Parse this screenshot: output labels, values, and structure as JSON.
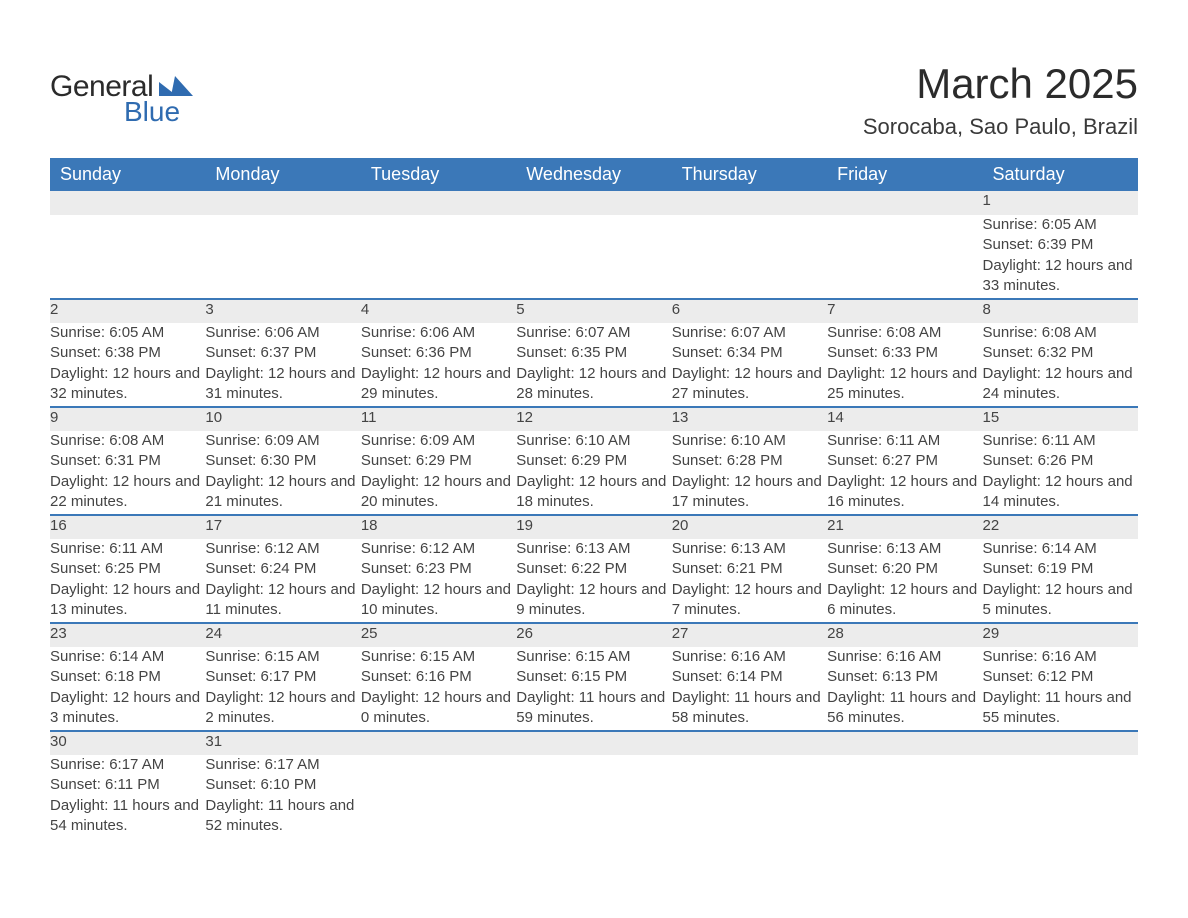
{
  "logo": {
    "text1": "General",
    "text2": "Blue",
    "mark_color": "#2f6bb0"
  },
  "title": "March 2025",
  "location": "Sorocaba, Sao Paulo, Brazil",
  "header_bg": "#3b78b8",
  "header_fg": "#ffffff",
  "daynum_bg": "#ececec",
  "border_color": "#3b78b8",
  "weekdays": [
    "Sunday",
    "Monday",
    "Tuesday",
    "Wednesday",
    "Thursday",
    "Friday",
    "Saturday"
  ],
  "weeks": [
    [
      null,
      null,
      null,
      null,
      null,
      null,
      {
        "n": "1",
        "sr": "6:05 AM",
        "ss": "6:39 PM",
        "dl": "12 hours and 33 minutes."
      }
    ],
    [
      {
        "n": "2",
        "sr": "6:05 AM",
        "ss": "6:38 PM",
        "dl": "12 hours and 32 minutes."
      },
      {
        "n": "3",
        "sr": "6:06 AM",
        "ss": "6:37 PM",
        "dl": "12 hours and 31 minutes."
      },
      {
        "n": "4",
        "sr": "6:06 AM",
        "ss": "6:36 PM",
        "dl": "12 hours and 29 minutes."
      },
      {
        "n": "5",
        "sr": "6:07 AM",
        "ss": "6:35 PM",
        "dl": "12 hours and 28 minutes."
      },
      {
        "n": "6",
        "sr": "6:07 AM",
        "ss": "6:34 PM",
        "dl": "12 hours and 27 minutes."
      },
      {
        "n": "7",
        "sr": "6:08 AM",
        "ss": "6:33 PM",
        "dl": "12 hours and 25 minutes."
      },
      {
        "n": "8",
        "sr": "6:08 AM",
        "ss": "6:32 PM",
        "dl": "12 hours and 24 minutes."
      }
    ],
    [
      {
        "n": "9",
        "sr": "6:08 AM",
        "ss": "6:31 PM",
        "dl": "12 hours and 22 minutes."
      },
      {
        "n": "10",
        "sr": "6:09 AM",
        "ss": "6:30 PM",
        "dl": "12 hours and 21 minutes."
      },
      {
        "n": "11",
        "sr": "6:09 AM",
        "ss": "6:29 PM",
        "dl": "12 hours and 20 minutes."
      },
      {
        "n": "12",
        "sr": "6:10 AM",
        "ss": "6:29 PM",
        "dl": "12 hours and 18 minutes."
      },
      {
        "n": "13",
        "sr": "6:10 AM",
        "ss": "6:28 PM",
        "dl": "12 hours and 17 minutes."
      },
      {
        "n": "14",
        "sr": "6:11 AM",
        "ss": "6:27 PM",
        "dl": "12 hours and 16 minutes."
      },
      {
        "n": "15",
        "sr": "6:11 AM",
        "ss": "6:26 PM",
        "dl": "12 hours and 14 minutes."
      }
    ],
    [
      {
        "n": "16",
        "sr": "6:11 AM",
        "ss": "6:25 PM",
        "dl": "12 hours and 13 minutes."
      },
      {
        "n": "17",
        "sr": "6:12 AM",
        "ss": "6:24 PM",
        "dl": "12 hours and 11 minutes."
      },
      {
        "n": "18",
        "sr": "6:12 AM",
        "ss": "6:23 PM",
        "dl": "12 hours and 10 minutes."
      },
      {
        "n": "19",
        "sr": "6:13 AM",
        "ss": "6:22 PM",
        "dl": "12 hours and 9 minutes."
      },
      {
        "n": "20",
        "sr": "6:13 AM",
        "ss": "6:21 PM",
        "dl": "12 hours and 7 minutes."
      },
      {
        "n": "21",
        "sr": "6:13 AM",
        "ss": "6:20 PM",
        "dl": "12 hours and 6 minutes."
      },
      {
        "n": "22",
        "sr": "6:14 AM",
        "ss": "6:19 PM",
        "dl": "12 hours and 5 minutes."
      }
    ],
    [
      {
        "n": "23",
        "sr": "6:14 AM",
        "ss": "6:18 PM",
        "dl": "12 hours and 3 minutes."
      },
      {
        "n": "24",
        "sr": "6:15 AM",
        "ss": "6:17 PM",
        "dl": "12 hours and 2 minutes."
      },
      {
        "n": "25",
        "sr": "6:15 AM",
        "ss": "6:16 PM",
        "dl": "12 hours and 0 minutes."
      },
      {
        "n": "26",
        "sr": "6:15 AM",
        "ss": "6:15 PM",
        "dl": "11 hours and 59 minutes."
      },
      {
        "n": "27",
        "sr": "6:16 AM",
        "ss": "6:14 PM",
        "dl": "11 hours and 58 minutes."
      },
      {
        "n": "28",
        "sr": "6:16 AM",
        "ss": "6:13 PM",
        "dl": "11 hours and 56 minutes."
      },
      {
        "n": "29",
        "sr": "6:16 AM",
        "ss": "6:12 PM",
        "dl": "11 hours and 55 minutes."
      }
    ],
    [
      {
        "n": "30",
        "sr": "6:17 AM",
        "ss": "6:11 PM",
        "dl": "11 hours and 54 minutes."
      },
      {
        "n": "31",
        "sr": "6:17 AM",
        "ss": "6:10 PM",
        "dl": "11 hours and 52 minutes."
      },
      null,
      null,
      null,
      null,
      null
    ]
  ],
  "labels": {
    "sunrise": "Sunrise:",
    "sunset": "Sunset:",
    "daylight": "Daylight:"
  }
}
